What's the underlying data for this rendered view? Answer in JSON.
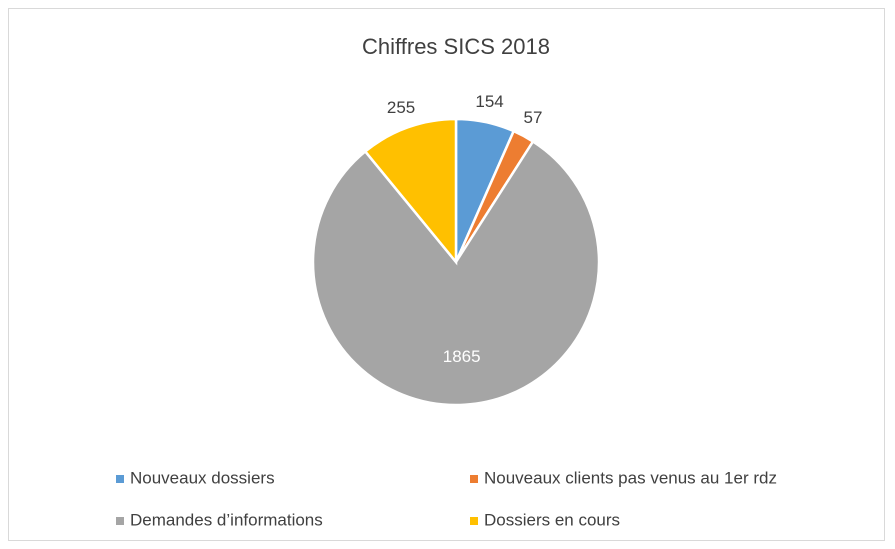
{
  "chart_data": {
    "type": "pie",
    "title": "Chiffres SICS 2018",
    "categories": [
      "Nouveaux dossiers",
      "Nouveaux clients pas venus au 1er rdz",
      "Demandes d’informations",
      "Dossiers en cours"
    ],
    "values": [
      154,
      57,
      1865,
      255
    ],
    "colors": [
      "#5b9bd5",
      "#ed7d31",
      "#a5a5a5",
      "#ffc000"
    ],
    "legend": "bottom"
  }
}
